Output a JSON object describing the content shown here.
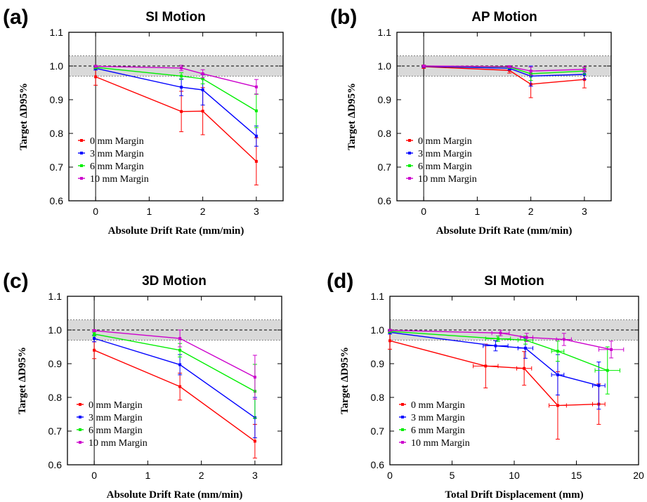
{
  "chart_data": [
    {
      "type": "line",
      "panel": "(a)",
      "title": "SI Motion",
      "xlabel": "Absolute Drift Rate (mm/min)",
      "ylabel": "Target ΔD95%",
      "xlim": [
        -0.5,
        3.5
      ],
      "ylim": [
        0.6,
        1.1
      ],
      "xticks": [
        0,
        1,
        2,
        3
      ],
      "yticks": [
        0.6,
        0.7,
        0.8,
        0.9,
        1.0,
        1.1
      ],
      "band": [
        0.97,
        1.03
      ],
      "ref_line": 1.0,
      "vline": 0,
      "legend_position": "lower-left",
      "series": [
        {
          "name": "0 mm Margin",
          "color": "#ff0000",
          "x": [
            0,
            1.6,
            2,
            3
          ],
          "y": [
            0.968,
            0.865,
            0.866,
            0.717
          ],
          "yerr": [
            0.025,
            0.06,
            0.07,
            0.07
          ],
          "xerr": [
            0,
            0,
            0,
            0
          ]
        },
        {
          "name": "3 mm Margin",
          "color": "#0000ff",
          "x": [
            0,
            1.6,
            2,
            3
          ],
          "y": [
            0.993,
            0.937,
            0.929,
            0.792
          ],
          "yerr": [
            0.005,
            0.025,
            0.045,
            0.03
          ],
          "xerr": [
            0,
            0,
            0,
            0
          ]
        },
        {
          "name": "6 mm Margin",
          "color": "#00ee00",
          "x": [
            0,
            1.6,
            2,
            3
          ],
          "y": [
            0.996,
            0.97,
            0.962,
            0.867
          ],
          "yerr": [
            0.004,
            0.01,
            0.015,
            0.05
          ],
          "xerr": [
            0,
            0,
            0,
            0
          ]
        },
        {
          "name": "10 mm Margin",
          "color": "#cc00cc",
          "x": [
            0,
            1.6,
            2,
            3
          ],
          "y": [
            0.999,
            0.994,
            0.977,
            0.938
          ],
          "yerr": [
            0.003,
            0.008,
            0.012,
            0.022
          ],
          "xerr": [
            0,
            0,
            0,
            0
          ]
        }
      ]
    },
    {
      "type": "line",
      "panel": "(b)",
      "title": "AP Motion",
      "xlabel": "Absolute Drift Rate (mm/min)",
      "ylabel": "Target ΔD95%",
      "xlim": [
        -0.5,
        3.5
      ],
      "ylim": [
        0.6,
        1.1
      ],
      "xticks": [
        0,
        1,
        2,
        3
      ],
      "yticks": [
        0.6,
        0.7,
        0.8,
        0.9,
        1.0,
        1.1
      ],
      "band": [
        0.97,
        1.03
      ],
      "ref_line": 1.0,
      "vline": 0,
      "legend_position": "lower-left",
      "series": [
        {
          "name": "0 mm Margin",
          "color": "#ff0000",
          "x": [
            0,
            1.6,
            2,
            3
          ],
          "y": [
            0.998,
            0.987,
            0.946,
            0.96
          ],
          "yerr": [
            0.005,
            0.008,
            0.04,
            0.025
          ],
          "xerr": [
            0,
            0,
            0,
            0
          ]
        },
        {
          "name": "3 mm Margin",
          "color": "#0000ff",
          "x": [
            0,
            1.6,
            2,
            3
          ],
          "y": [
            0.999,
            0.993,
            0.97,
            0.975
          ],
          "yerr": [
            0.003,
            0.005,
            0.03,
            0.015
          ],
          "xerr": [
            0,
            0,
            0,
            0
          ]
        },
        {
          "name": "6 mm Margin",
          "color": "#00ee00",
          "x": [
            0,
            1.6,
            2,
            3
          ],
          "y": [
            1.0,
            0.997,
            0.977,
            0.985
          ],
          "yerr": [
            0.002,
            0.004,
            0.02,
            0.01
          ],
          "xerr": [
            0,
            0,
            0,
            0
          ]
        },
        {
          "name": "10 mm Margin",
          "color": "#cc00cc",
          "x": [
            0,
            1.6,
            2,
            3
          ],
          "y": [
            1.0,
            0.998,
            0.985,
            0.99
          ],
          "yerr": [
            0.002,
            0.003,
            0.012,
            0.008
          ],
          "xerr": [
            0,
            0,
            0,
            0
          ]
        }
      ]
    },
    {
      "type": "line",
      "panel": "(c)",
      "title": "3D Motion",
      "xlabel": "Absolute Drift Rate (mm/min)",
      "ylabel": "Target ΔD95%",
      "xlim": [
        -0.5,
        3.5
      ],
      "ylim": [
        0.6,
        1.1
      ],
      "xticks": [
        0,
        1,
        2,
        3
      ],
      "yticks": [
        0.6,
        0.7,
        0.8,
        0.9,
        1.0,
        1.1
      ],
      "band": [
        0.97,
        1.03
      ],
      "ref_line": 1.0,
      "vline": 0,
      "legend_position": "lower-left",
      "series": [
        {
          "name": "0 mm Margin",
          "color": "#ff0000",
          "x": [
            0,
            1.6,
            3
          ],
          "y": [
            0.94,
            0.832,
            0.67
          ],
          "yerr": [
            0.025,
            0.04,
            0.05
          ],
          "xerr": [
            0,
            0,
            0
          ]
        },
        {
          "name": "3 mm Margin",
          "color": "#0000ff",
          "x": [
            0,
            1.6,
            3
          ],
          "y": [
            0.975,
            0.897,
            0.74
          ],
          "yerr": [
            0.01,
            0.03,
            0.06
          ],
          "xerr": [
            0,
            0,
            0
          ]
        },
        {
          "name": "6 mm Margin",
          "color": "#00ee00",
          "x": [
            0,
            1.6,
            3
          ],
          "y": [
            0.988,
            0.94,
            0.818
          ],
          "yerr": [
            0.006,
            0.02,
            0.08
          ],
          "xerr": [
            0,
            0,
            0
          ]
        },
        {
          "name": "10 mm Margin",
          "color": "#cc00cc",
          "x": [
            0,
            1.6,
            3
          ],
          "y": [
            0.998,
            0.975,
            0.86
          ],
          "yerr": [
            0.003,
            0.025,
            0.065
          ],
          "xerr": [
            0,
            0,
            0
          ]
        }
      ]
    },
    {
      "type": "line",
      "panel": "(d)",
      "title": "SI Motion",
      "xlabel": "Total Drift Displacement (mm)",
      "ylabel": "Target ΔD95%",
      "xlim": [
        0,
        20
      ],
      "ylim": [
        0.6,
        1.1
      ],
      "xticks": [
        0,
        5,
        10,
        15,
        20
      ],
      "yticks": [
        0.6,
        0.7,
        0.8,
        0.9,
        1.0,
        1.1
      ],
      "band": [
        0.97,
        1.03
      ],
      "ref_line": 1.0,
      "vline": null,
      "legend_position": "lower-left",
      "series": [
        {
          "name": "0 mm Margin",
          "color": "#ff0000",
          "x": [
            0,
            7.7,
            10.8,
            13.5,
            16.8
          ],
          "y": [
            0.968,
            0.893,
            0.886,
            0.776,
            0.78
          ],
          "yerr": [
            0.025,
            0.065,
            0.05,
            0.1,
            0.06
          ],
          "xerr": [
            0,
            1.0,
            0.6,
            0.7,
            0.5
          ]
        },
        {
          "name": "3 mm Margin",
          "color": "#0000ff",
          "x": [
            0,
            8.5,
            10.9,
            13.5,
            16.8
          ],
          "y": [
            0.993,
            0.953,
            0.946,
            0.867,
            0.835
          ],
          "yerr": [
            0.005,
            0.015,
            0.03,
            0.06,
            0.07
          ],
          "xerr": [
            0,
            1.0,
            0.6,
            0.5,
            0.5
          ]
        },
        {
          "name": "6 mm Margin",
          "color": "#00ee00",
          "x": [
            0,
            8.7,
            10.9,
            13.5,
            17.5
          ],
          "y": [
            0.996,
            0.974,
            0.97,
            0.937,
            0.88
          ],
          "yerr": [
            0.004,
            0.008,
            0.012,
            0.03,
            0.07
          ],
          "xerr": [
            0,
            1.0,
            0.6,
            0.5,
            1.0
          ]
        },
        {
          "name": "10 mm Margin",
          "color": "#cc00cc",
          "x": [
            0,
            8.9,
            11.0,
            14.0,
            17.8
          ],
          "y": [
            0.999,
            0.991,
            0.978,
            0.972,
            0.942
          ],
          "yerr": [
            0.003,
            0.008,
            0.012,
            0.018,
            0.025
          ],
          "xerr": [
            0,
            0.7,
            0.5,
            0.6,
            1.0
          ]
        }
      ]
    }
  ]
}
